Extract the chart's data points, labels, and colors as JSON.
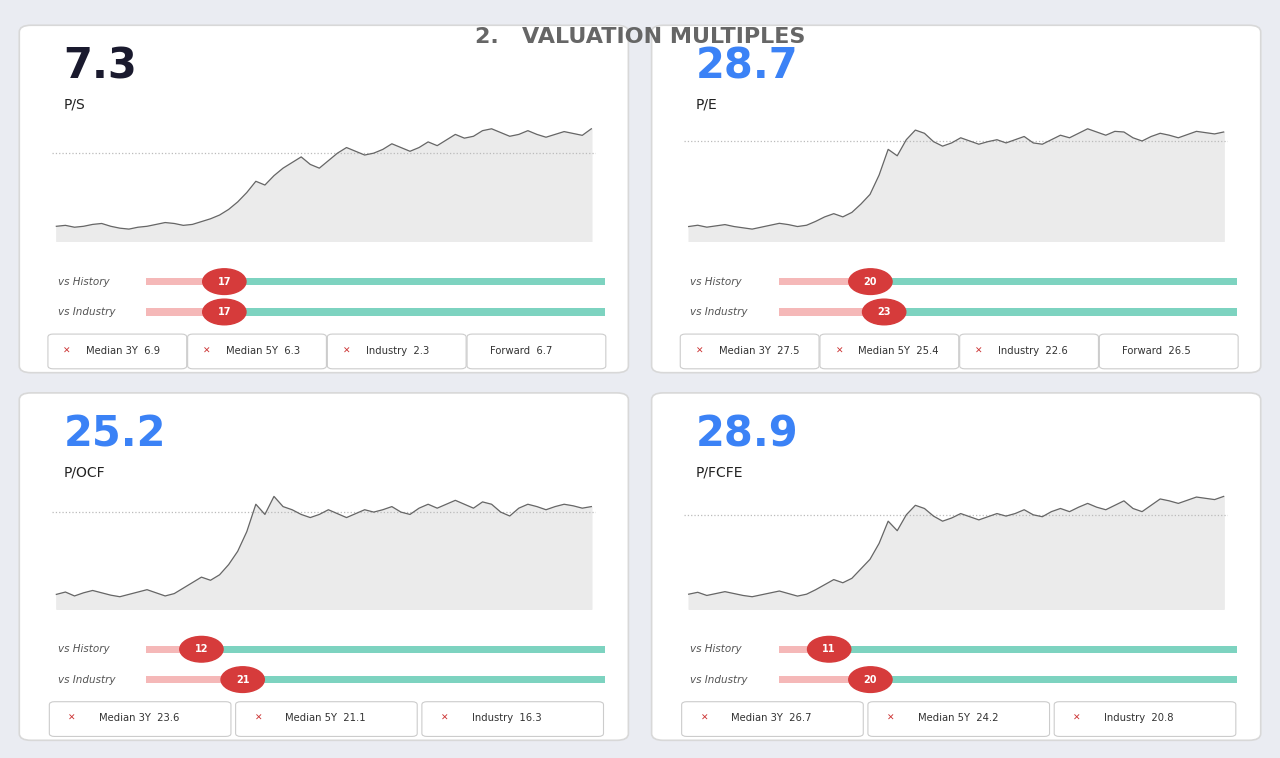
{
  "title": "2.   VALUATION MULTIPLES",
  "background_color": "#eaecf2",
  "card_bg": "#ffffff",
  "panels": [
    {
      "value": "7.3",
      "label": "P/S",
      "value_color": "#1a1a2e",
      "vs_history_label": "vs History",
      "vs_history_badge": 17,
      "vs_industry_label": "vs Industry",
      "vs_industry_badge": 17,
      "metrics": [
        {
          "name": "Median 3Y",
          "val": "6.9",
          "has_x": true
        },
        {
          "name": "Median 5Y",
          "val": "6.3",
          "has_x": true
        },
        {
          "name": "Industry",
          "val": "2.3",
          "has_x": true
        },
        {
          "name": "Forward",
          "val": "6.7",
          "has_x": false
        }
      ],
      "chart_data": [
        2.1,
        2.15,
        2.05,
        2.1,
        2.2,
        2.25,
        2.1,
        2.0,
        1.95,
        2.05,
        2.1,
        2.2,
        2.3,
        2.25,
        2.15,
        2.2,
        2.35,
        2.5,
        2.7,
        3.0,
        3.4,
        3.9,
        4.5,
        4.3,
        4.8,
        5.2,
        5.5,
        5.8,
        5.4,
        5.2,
        5.6,
        6.0,
        6.3,
        6.1,
        5.9,
        6.0,
        6.2,
        6.5,
        6.3,
        6.1,
        6.3,
        6.6,
        6.4,
        6.7,
        7.0,
        6.8,
        6.9,
        7.2,
        7.3,
        7.1,
        6.9,
        7.0,
        7.2,
        7.0,
        6.85,
        7.0,
        7.15,
        7.05,
        6.95,
        7.3
      ]
    },
    {
      "value": "28.7",
      "label": "P/E",
      "value_color": "#3b82f6",
      "vs_history_label": "vs History",
      "vs_history_badge": 20,
      "vs_industry_label": "vs Industry",
      "vs_industry_badge": 23,
      "metrics": [
        {
          "name": "Median 3Y",
          "val": "27.5",
          "has_x": true
        },
        {
          "name": "Median 5Y",
          "val": "25.4",
          "has_x": true
        },
        {
          "name": "Industry",
          "val": "22.6",
          "has_x": true
        },
        {
          "name": "Forward",
          "val": "26.5",
          "has_x": false
        }
      ],
      "chart_data": [
        14.0,
        14.2,
        13.9,
        14.1,
        14.3,
        14.0,
        13.8,
        13.6,
        13.9,
        14.2,
        14.5,
        14.3,
        14.0,
        14.2,
        14.8,
        15.5,
        16.0,
        15.5,
        16.2,
        17.5,
        19.0,
        22.0,
        26.0,
        25.0,
        27.5,
        29.0,
        28.5,
        27.2,
        26.5,
        27.0,
        27.8,
        27.3,
        26.8,
        27.2,
        27.5,
        27.0,
        27.5,
        28.0,
        27.0,
        26.8,
        27.5,
        28.2,
        27.8,
        28.5,
        29.2,
        28.7,
        28.2,
        28.8,
        28.7,
        27.8,
        27.3,
        28.0,
        28.5,
        28.2,
        27.8,
        28.3,
        28.8,
        28.6,
        28.4,
        28.7
      ]
    },
    {
      "value": "25.2",
      "label": "P/OCF",
      "value_color": "#3b82f6",
      "vs_history_label": "vs History",
      "vs_history_badge": 12,
      "vs_industry_label": "vs Industry",
      "vs_industry_badge": 21,
      "metrics": [
        {
          "name": "Median 3Y",
          "val": "23.6",
          "has_x": true
        },
        {
          "name": "Median 5Y",
          "val": "21.1",
          "has_x": true
        },
        {
          "name": "Industry",
          "val": "16.3",
          "has_x": true
        }
      ],
      "chart_data": [
        14.0,
        14.3,
        13.8,
        14.2,
        14.5,
        14.2,
        13.9,
        13.7,
        14.0,
        14.3,
        14.6,
        14.2,
        13.8,
        14.1,
        14.8,
        15.5,
        16.2,
        15.8,
        16.5,
        17.8,
        19.5,
        22.0,
        25.5,
        24.2,
        26.5,
        25.2,
        24.8,
        24.2,
        23.8,
        24.2,
        24.8,
        24.3,
        23.8,
        24.3,
        24.8,
        24.5,
        24.8,
        25.2,
        24.5,
        24.2,
        25.0,
        25.5,
        25.0,
        25.5,
        26.0,
        25.5,
        25.0,
        25.8,
        25.5,
        24.5,
        24.0,
        25.0,
        25.5,
        25.2,
        24.8,
        25.2,
        25.5,
        25.3,
        25.0,
        25.2
      ]
    },
    {
      "value": "28.9",
      "label": "P/FCFE",
      "value_color": "#3b82f6",
      "vs_history_label": "vs History",
      "vs_history_badge": 11,
      "vs_industry_label": "vs Industry",
      "vs_industry_badge": 20,
      "metrics": [
        {
          "name": "Median 3Y",
          "val": "26.7",
          "has_x": true
        },
        {
          "name": "Median 5Y",
          "val": "24.2",
          "has_x": true
        },
        {
          "name": "Industry",
          "val": "20.8",
          "has_x": true
        }
      ],
      "chart_data": [
        13.5,
        13.8,
        13.3,
        13.6,
        13.9,
        13.6,
        13.3,
        13.1,
        13.4,
        13.7,
        14.0,
        13.6,
        13.2,
        13.5,
        14.2,
        15.0,
        15.8,
        15.3,
        16.0,
        17.5,
        19.0,
        21.5,
        25.0,
        23.5,
        26.0,
        27.5,
        27.0,
        25.8,
        25.0,
        25.5,
        26.2,
        25.7,
        25.2,
        25.7,
        26.2,
        25.8,
        26.2,
        26.8,
        26.0,
        25.7,
        26.5,
        27.0,
        26.5,
        27.2,
        27.8,
        27.2,
        26.8,
        27.5,
        28.2,
        27.0,
        26.5,
        27.5,
        28.5,
        28.2,
        27.8,
        28.3,
        28.8,
        28.6,
        28.4,
        28.9
      ]
    }
  ]
}
